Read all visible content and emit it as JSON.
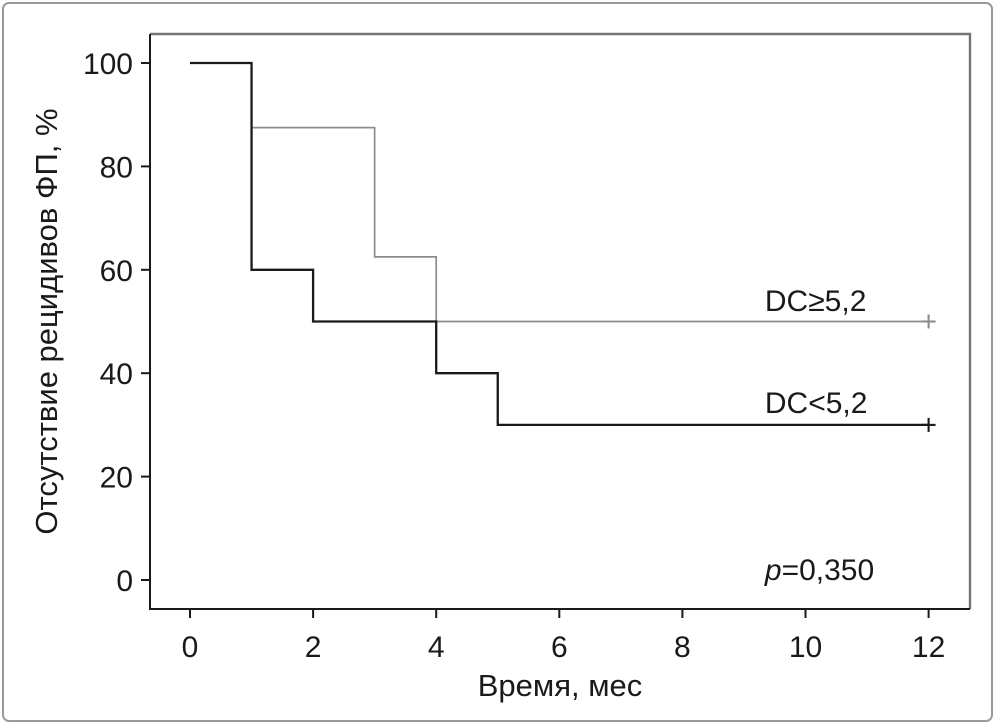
{
  "figure": {
    "kind": "kaplan-meier-survival-plot"
  },
  "colors": {
    "background": "#ffffff",
    "outer_border": "#9a9a9a",
    "frame_top_right": "#757575",
    "frame_left_bottom": "#1a1a1a",
    "text": "#1a1a1a"
  },
  "chart_data": {
    "type": "line",
    "subtype": "step-survival",
    "title": "",
    "xlabel": "Время, мес",
    "ylabel": "Отсутствие рецидивов ФП, %",
    "xlim": [
      0,
      12
    ],
    "ylim": [
      0,
      100
    ],
    "x_ticks": [
      0,
      2,
      4,
      6,
      8,
      10,
      12
    ],
    "y_ticks": [
      0,
      20,
      40,
      60,
      80,
      100
    ],
    "grid": false,
    "legend_position": "inline-right",
    "series": [
      {
        "name": "DC≥5,2",
        "color": "#8c8c8c",
        "stroke_width": 1.7,
        "points": [
          [
            0,
            100
          ],
          [
            1,
            100
          ],
          [
            1,
            87.5
          ],
          [
            3,
            87.5
          ],
          [
            3,
            62.5
          ],
          [
            4,
            62.5
          ],
          [
            4,
            50
          ],
          [
            12,
            50
          ]
        ],
        "censor_marks": [
          [
            12,
            50
          ]
        ]
      },
      {
        "name": "DC<5,2",
        "color": "#1a1a1a",
        "stroke_width": 2.3,
        "points": [
          [
            0,
            100
          ],
          [
            1,
            100
          ],
          [
            1,
            60
          ],
          [
            2,
            60
          ],
          [
            2,
            50
          ],
          [
            4,
            50
          ],
          [
            4,
            40
          ],
          [
            5,
            40
          ],
          [
            5,
            30
          ],
          [
            12,
            30
          ]
        ],
        "censor_marks": [
          [
            12,
            30
          ]
        ]
      }
    ],
    "annotations": [
      {
        "name": "series-label-upper",
        "text": "DC≥5,2",
        "x": 9.34,
        "y": 52.0,
        "anchor": "start"
      },
      {
        "name": "series-label-lower",
        "text": "DC<5,2",
        "x": 9.34,
        "y": 32.3,
        "anchor": "start"
      },
      {
        "name": "p-value-annotation",
        "x": 9.34,
        "y": 0,
        "anchor": "start",
        "parts": [
          {
            "t": "p",
            "italic": true
          },
          {
            "t": "=0,350",
            "italic": false
          }
        ]
      }
    ]
  }
}
